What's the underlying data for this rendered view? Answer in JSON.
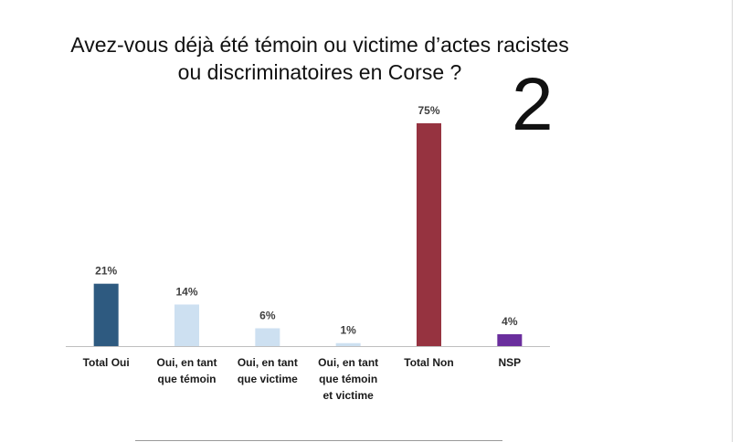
{
  "title_line1": "Avez-vous déjà été témoin ou victime d’actes racistes",
  "title_line2": "ou discriminatoires en Corse ?",
  "page_number": "2",
  "chart_data": {
    "type": "bar",
    "categories": [
      [
        "Total Oui"
      ],
      [
        "Oui, en tant",
        "que témoin"
      ],
      [
        "Oui, en tant",
        "que victime"
      ],
      [
        "Oui, en tant",
        "que témoin",
        "et victime"
      ],
      [
        "Total Non"
      ],
      [
        "NSP"
      ]
    ],
    "values": [
      21,
      14,
      6,
      1,
      75,
      4
    ],
    "value_labels": [
      "21%",
      "14%",
      "6%",
      "1%",
      "75%",
      "4%"
    ],
    "colors": [
      "#2e5a80",
      "#cde0f1",
      "#cde0f1",
      "#cde0f1",
      "#963340",
      "#6a2e9d"
    ],
    "ylim": [
      0,
      75
    ],
    "grid": false,
    "legend": "none",
    "xlabel": "",
    "ylabel": ""
  }
}
